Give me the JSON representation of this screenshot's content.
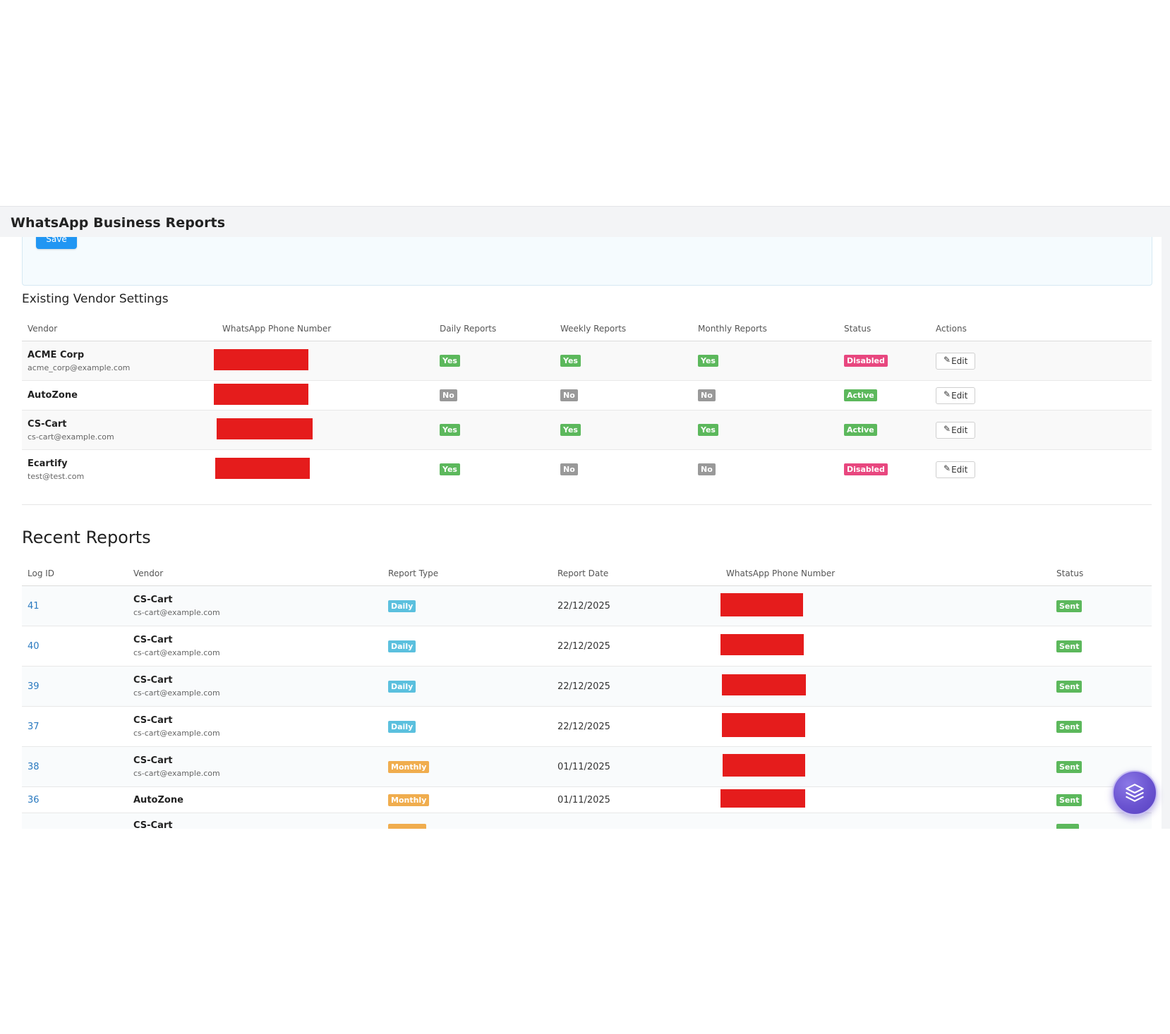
{
  "page": {
    "title": "WhatsApp Business Reports"
  },
  "settings_form": {
    "save_label": "Save"
  },
  "vendor_settings": {
    "title": "Existing Vendor Settings",
    "columns": [
      "Vendor",
      "WhatsApp Phone Number",
      "Daily Reports",
      "Weekly Reports",
      "Monthly Reports",
      "Status",
      "Actions"
    ],
    "rows": [
      {
        "vendor": "ACME Corp",
        "email": "acme_corp@example.com",
        "daily": "Yes",
        "weekly": "Yes",
        "monthly": "Yes",
        "status": "Disabled",
        "action": "Edit"
      },
      {
        "vendor": "AutoZone",
        "email": "",
        "daily": "No",
        "weekly": "No",
        "monthly": "No",
        "status": "Active",
        "action": "Edit"
      },
      {
        "vendor": "CS-Cart",
        "email": "cs-cart@example.com",
        "daily": "Yes",
        "weekly": "Yes",
        "monthly": "Yes",
        "status": "Active",
        "action": "Edit"
      },
      {
        "vendor": "Ecartify",
        "email": "test@test.com",
        "daily": "Yes",
        "weekly": "No",
        "monthly": "No",
        "status": "Disabled",
        "action": "Edit"
      }
    ]
  },
  "recent_reports": {
    "title": "Recent Reports",
    "columns": [
      "Log ID",
      "Vendor",
      "Report Type",
      "Report Date",
      "WhatsApp Phone Number",
      "Status"
    ],
    "rows": [
      {
        "log_id": "41",
        "vendor": "CS-Cart",
        "email": "cs-cart@example.com",
        "type": "Daily",
        "date": "22/12/2025",
        "status": "Sent"
      },
      {
        "log_id": "40",
        "vendor": "CS-Cart",
        "email": "cs-cart@example.com",
        "type": "Daily",
        "date": "22/12/2025",
        "status": "Sent"
      },
      {
        "log_id": "39",
        "vendor": "CS-Cart",
        "email": "cs-cart@example.com",
        "type": "Daily",
        "date": "22/12/2025",
        "status": "Sent"
      },
      {
        "log_id": "37",
        "vendor": "CS-Cart",
        "email": "cs-cart@example.com",
        "type": "Daily",
        "date": "22/12/2025",
        "status": "Sent"
      },
      {
        "log_id": "38",
        "vendor": "CS-Cart",
        "email": "cs-cart@example.com",
        "type": "Monthly",
        "date": "01/11/2025",
        "status": "Sent"
      },
      {
        "log_id": "36",
        "vendor": "AutoZone",
        "email": "",
        "type": "Monthly",
        "date": "01/11/2025",
        "status": "Sent"
      },
      {
        "log_id": "",
        "vendor": "CS-Cart",
        "email": "",
        "type": "",
        "date": "",
        "status": ""
      }
    ]
  },
  "fab": {
    "icon": "layers-icon"
  },
  "colors": {
    "primary": "#2196f3",
    "success": "#5cb85c",
    "muted": "#999999",
    "danger": "#e8477f",
    "info": "#5bc0de",
    "warning": "#f0ad4e",
    "redaction": "#e51c1c",
    "fab": "#6a53d0"
  }
}
